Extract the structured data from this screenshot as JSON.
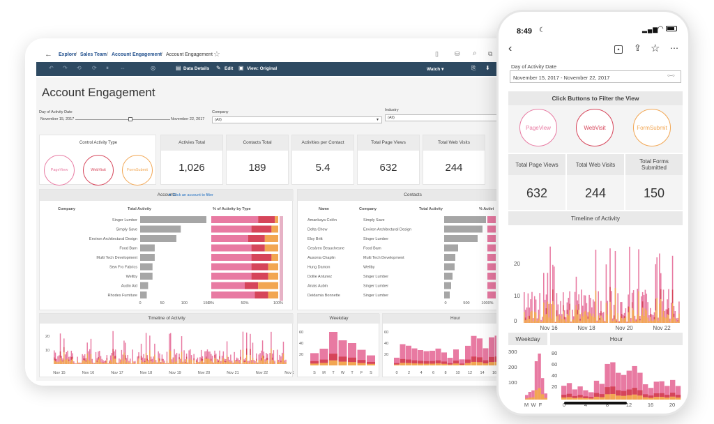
{
  "tablet": {
    "breadcrumb": [
      "Explore",
      "Sales Team",
      "Account Engagement",
      "Account Engagement"
    ],
    "toolbar": {
      "data_details": "Data Details",
      "edit": "Edit",
      "view": "View: Original",
      "watch": "Watch ▾"
    },
    "title": "Account Engagement",
    "filters": {
      "date_label": "Day of Activity Date",
      "date_start": "November 15, 2017",
      "date_end": "November 22, 2017",
      "company_label": "Company",
      "company_value": "(All)",
      "industry_label": "Industry",
      "industry_value": "(All)"
    },
    "control": {
      "title": "Control Activity Type",
      "buttons": [
        "PageView",
        "WebVisit",
        "FormSubmit"
      ]
    },
    "kpis": [
      {
        "label": "Activies Total",
        "value": "1,026"
      },
      {
        "label": "Contacts Total",
        "value": "189"
      },
      {
        "label": "Activities per Contact",
        "value": "5.4"
      },
      {
        "label": "Total Page Views",
        "value": "632"
      },
      {
        "label": "Total Web Visits",
        "value": "244"
      }
    ],
    "accounts": {
      "title": "Accounts",
      "hint": "★ Click an account to filter",
      "col_company": "Company",
      "col_total": "Total Activity",
      "col_pct": "% of Activity by Type",
      "rows": [
        "Singer Lumber",
        "Simply Save",
        "Environ Architectural Design",
        "Food Barn",
        "Multi Tech Development",
        "Sew Fro Fabrics",
        "Wellby",
        "Audio Aid",
        "Rhodes Furniture"
      ],
      "totals": [
        150,
        92,
        82,
        33,
        33,
        28,
        28,
        18,
        15
      ],
      "shares": [
        [
          0.7,
          0.25,
          0.05
        ],
        [
          0.6,
          0.3,
          0.1
        ],
        [
          0.55,
          0.25,
          0.2
        ],
        [
          0.6,
          0.2,
          0.2
        ],
        [
          0.6,
          0.3,
          0.1
        ],
        [
          0.6,
          0.25,
          0.15
        ],
        [
          0.6,
          0.25,
          0.15
        ],
        [
          0.5,
          0.2,
          0.3
        ],
        [
          0.65,
          0.2,
          0.15
        ]
      ],
      "xticks_total": [
        "0",
        "50",
        "100",
        "150"
      ],
      "xticks_pct": [
        "0%",
        "50%",
        "100%"
      ]
    },
    "contacts": {
      "title": "Contacts",
      "col_name": "Name",
      "col_company": "Company",
      "col_total": "Total Activity",
      "col_pct": "% Activi",
      "rows": [
        [
          "Amankaya Colón",
          "Simply Save"
        ],
        [
          "Delta Chew",
          "Environ Architectural Design"
        ],
        [
          "Elsy Britt",
          "Singer Lumber"
        ],
        [
          "Cesáreo Beauchesne",
          "Food Barn"
        ],
        [
          "Ausonia Chaplin",
          "Multi Tech Development"
        ],
        [
          "Hung Damon",
          "Wellby"
        ],
        [
          "Dollie Antunez",
          "Singer Lumber"
        ],
        [
          "Anais Aubin",
          "Singer Lumber"
        ],
        [
          "Deidamia Bonnette",
          "Singer Lumber"
        ]
      ],
      "totals": [
        60,
        55,
        48,
        20,
        16,
        15,
        12,
        10,
        8
      ],
      "xticks": [
        "0",
        "500",
        "1000%"
      ]
    },
    "timeline": {
      "title": "Timeline of Activity",
      "yticks": [
        "20",
        "10"
      ],
      "xticks": [
        "Nov 15",
        "Nov 16",
        "Nov 17",
        "Nov 18",
        "Nov 19",
        "Nov 20",
        "Nov 21",
        "Nov 22",
        "Nov 23"
      ]
    },
    "weekday": {
      "title": "Weekday",
      "yticks": [
        "60",
        "40",
        "20"
      ],
      "xticks": [
        "S",
        "M",
        "T",
        "W",
        "T",
        "F",
        "S"
      ],
      "values": [
        22,
        30,
        60,
        45,
        40,
        28,
        18
      ]
    },
    "hour": {
      "title": "Hour",
      "yticks": [
        "60",
        "40",
        "20"
      ],
      "xticks": [
        "0",
        "2",
        "4",
        "6",
        "8",
        "10",
        "12",
        "14",
        "16",
        "18"
      ]
    }
  },
  "phone": {
    "time": "8:49",
    "date_label": "Day of Activity Date",
    "date_value": "November 15, 2017 - November 22, 2017",
    "filter_title": "Click Buttons to Filter the View",
    "buttons": [
      "PageView",
      "WebVisit",
      "FormSubmit"
    ],
    "kpis": [
      {
        "label": "Total Page Views",
        "value": "632"
      },
      {
        "label": "Total Web Visits",
        "value": "244"
      },
      {
        "label": "Total Forms Submitted",
        "value": "150"
      }
    ],
    "timeline": {
      "title": "Timeline of Activity",
      "yticks": [
        "20",
        "10",
        "0"
      ],
      "xticks": [
        "Nov 16",
        "Nov 18",
        "Nov 20",
        "Nov 22"
      ]
    },
    "weekday": {
      "title": "Weekday",
      "yticks": [
        "300",
        "200",
        "100"
      ],
      "xticks": [
        "M",
        "W",
        "F"
      ],
      "values": [
        30,
        50,
        60,
        250,
        300,
        140,
        40
      ]
    },
    "hour": {
      "title": "Hour",
      "yticks": [
        "80",
        "60",
        "40",
        "20"
      ],
      "xticks": [
        "0",
        "4",
        "8",
        "12",
        "16",
        "20"
      ]
    }
  },
  "colors": {
    "pink": "#e87aa2",
    "red": "#d6455a",
    "orange": "#f2a652",
    "gray": "#a6a6a6",
    "navy": "#2e4a62"
  }
}
